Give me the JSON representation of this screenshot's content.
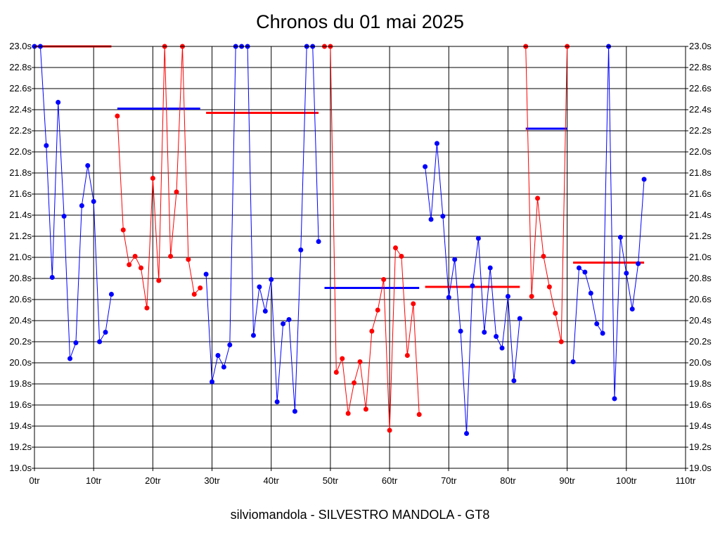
{
  "chart_data": {
    "type": "line",
    "title": "Chronos du 01 mai 2025",
    "footer": "silviomandola - SILVESTRO MANDOLA - GT8",
    "xlabel": "",
    "ylabel": "",
    "xlim": [
      0,
      110
    ],
    "ylim": [
      19.0,
      23.0
    ],
    "grid": true,
    "legend": "none",
    "x_ticks": [
      "0tr",
      "10tr",
      "20tr",
      "30tr",
      "40tr",
      "50tr",
      "60tr",
      "70tr",
      "80tr",
      "90tr",
      "100tr",
      "110tr"
    ],
    "y_ticks": [
      "19.0s",
      "19.2s",
      "19.4s",
      "19.6s",
      "19.8s",
      "20.0s",
      "20.2s",
      "20.4s",
      "20.6s",
      "20.8s",
      "21.0s",
      "21.2s",
      "21.4s",
      "21.6s",
      "21.8s",
      "22.0s",
      "22.2s",
      "22.4s",
      "22.6s",
      "22.8s",
      "23.0s"
    ],
    "colors": {
      "blue": "#0000ff",
      "red": "#ff0000",
      "grid": "#000000"
    },
    "series": [
      {
        "color": "#0000ff",
        "x": [
          0,
          1,
          2,
          3,
          4,
          5,
          6,
          7,
          8,
          9,
          10,
          11,
          12,
          13
        ],
        "y": [
          23.0,
          23.0,
          22.06,
          20.81,
          22.47,
          21.39,
          20.04,
          20.19,
          21.49,
          21.87,
          21.53,
          20.2,
          20.29,
          20.65
        ]
      },
      {
        "color": "#ff0000",
        "x": [
          14,
          15,
          16,
          17,
          18,
          19,
          20,
          21,
          22,
          23,
          24,
          25,
          26,
          27,
          28
        ],
        "y": [
          22.34,
          21.26,
          20.93,
          21.01,
          20.9,
          20.52,
          21.75,
          20.78,
          23.0,
          21.01,
          21.62,
          23.0,
          20.98,
          20.65,
          20.71
        ]
      },
      {
        "color": "#0000ff",
        "x": [
          29,
          30,
          31,
          32,
          33,
          34,
          35,
          36,
          37,
          38,
          39,
          40,
          41,
          42,
          43,
          44,
          45,
          46,
          47,
          48
        ],
        "y": [
          20.84,
          19.82,
          20.07,
          19.96,
          20.17,
          23.0,
          23.0,
          23.0,
          20.26,
          20.72,
          20.49,
          20.79,
          19.63,
          20.37,
          20.41,
          19.54,
          21.07,
          23.0,
          23.0,
          21.15
        ]
      },
      {
        "color": "#ff0000",
        "x": [
          49,
          50,
          51,
          52,
          53,
          54,
          55,
          56,
          57,
          58,
          59,
          60,
          61,
          62,
          63,
          64,
          65
        ],
        "y": [
          23.0,
          23.0,
          19.91,
          20.04,
          19.52,
          19.81,
          20.01,
          19.56,
          20.3,
          20.5,
          20.79,
          19.36,
          21.09,
          21.01,
          20.07,
          20.56,
          19.51
        ]
      },
      {
        "color": "#0000ff",
        "x": [
          66,
          67,
          68,
          69,
          70,
          71,
          72,
          73,
          74,
          75,
          76,
          77,
          78,
          79,
          80,
          81,
          82
        ],
        "y": [
          21.86,
          21.36,
          22.08,
          21.39,
          20.62,
          20.98,
          20.3,
          19.33,
          20.73,
          21.18,
          20.29,
          20.9,
          20.25,
          20.14,
          20.63,
          19.83,
          20.42
        ]
      },
      {
        "color": "#ff0000",
        "x": [
          83,
          84,
          85,
          86,
          87,
          88,
          89,
          90
        ],
        "y": [
          23.0,
          20.63,
          21.56,
          21.01,
          20.72,
          20.47,
          20.2,
          23.0
        ]
      },
      {
        "color": "#0000ff",
        "x": [
          91,
          92,
          93,
          94,
          95,
          96,
          97,
          98,
          99,
          100,
          101,
          102,
          103
        ],
        "y": [
          20.01,
          20.9,
          20.86,
          20.66,
          20.37,
          20.28,
          23.0,
          19.66,
          21.19,
          20.85,
          20.51,
          20.94,
          21.74
        ]
      }
    ],
    "averages": [
      {
        "color": "#ff0000",
        "x": [
          0,
          13
        ],
        "y": 23.0
      },
      {
        "color": "#0000ff",
        "x": [
          14,
          28
        ],
        "y": 22.41
      },
      {
        "color": "#ff0000",
        "x": [
          29,
          48
        ],
        "y": 22.37
      },
      {
        "color": "#0000ff",
        "x": [
          49,
          65
        ],
        "y": 20.71
      },
      {
        "color": "#ff0000",
        "x": [
          66,
          82
        ],
        "y": 20.72
      },
      {
        "color": "#0000ff",
        "x": [
          83,
          90
        ],
        "y": 22.22
      },
      {
        "color": "#ff0000",
        "x": [
          91,
          103
        ],
        "y": 20.95
      }
    ]
  }
}
